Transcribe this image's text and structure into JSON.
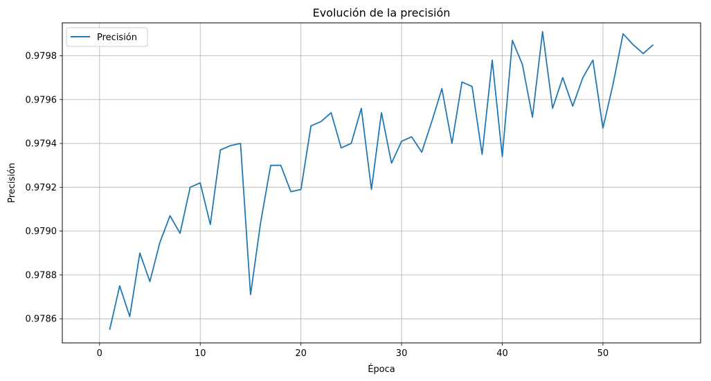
{
  "chart_data": {
    "type": "line",
    "title": "Evolución de la precisión",
    "xlabel": "Época",
    "ylabel": "Precisión",
    "xlim": [
      -3.7,
      59.7
    ],
    "ylim": [
      0.97849,
      0.97995
    ],
    "xticks": [
      0,
      10,
      20,
      30,
      40,
      50
    ],
    "xtick_labels": [
      "0",
      "10",
      "20",
      "30",
      "40",
      "50"
    ],
    "yticks": [
      0.9786,
      0.9788,
      0.979,
      0.9792,
      0.9794,
      0.9796,
      0.9798
    ],
    "ytick_labels": [
      "0.9786",
      "0.9788",
      "0.9790",
      "0.9792",
      "0.9794",
      "0.9796",
      "0.9798"
    ],
    "grid": true,
    "legend_position": "top-left",
    "series": [
      {
        "name": "Precisión",
        "color": "#1f77b4",
        "x": [
          1,
          2,
          3,
          4,
          5,
          6,
          7,
          8,
          9,
          10,
          11,
          12,
          13,
          14,
          15,
          16,
          17,
          18,
          19,
          20,
          21,
          22,
          23,
          24,
          25,
          26,
          27,
          28,
          29,
          30,
          31,
          32,
          33,
          34,
          35,
          36,
          37,
          38,
          39,
          40,
          41,
          42,
          43,
          44,
          45,
          46,
          47,
          48,
          49,
          50,
          51,
          52,
          53,
          54,
          55
        ],
        "values": [
          0.97855,
          0.97875,
          0.97861,
          0.9789,
          0.97877,
          0.97895,
          0.97907,
          0.97899,
          0.9792,
          0.97922,
          0.97903,
          0.97937,
          0.97939,
          0.9794,
          0.97871,
          0.97904,
          0.9793,
          0.9793,
          0.97918,
          0.97919,
          0.97948,
          0.9795,
          0.97954,
          0.97938,
          0.9794,
          0.97956,
          0.97919,
          0.97954,
          0.97931,
          0.97941,
          0.97943,
          0.97936,
          0.9795,
          0.97965,
          0.9794,
          0.97968,
          0.97966,
          0.97935,
          0.97978,
          0.97934,
          0.97987,
          0.97976,
          0.97952,
          0.97991,
          0.97956,
          0.9797,
          0.97957,
          0.9797,
          0.97978,
          0.97947,
          0.97967,
          0.9799,
          0.97985,
          0.97981,
          0.97985
        ]
      }
    ]
  }
}
